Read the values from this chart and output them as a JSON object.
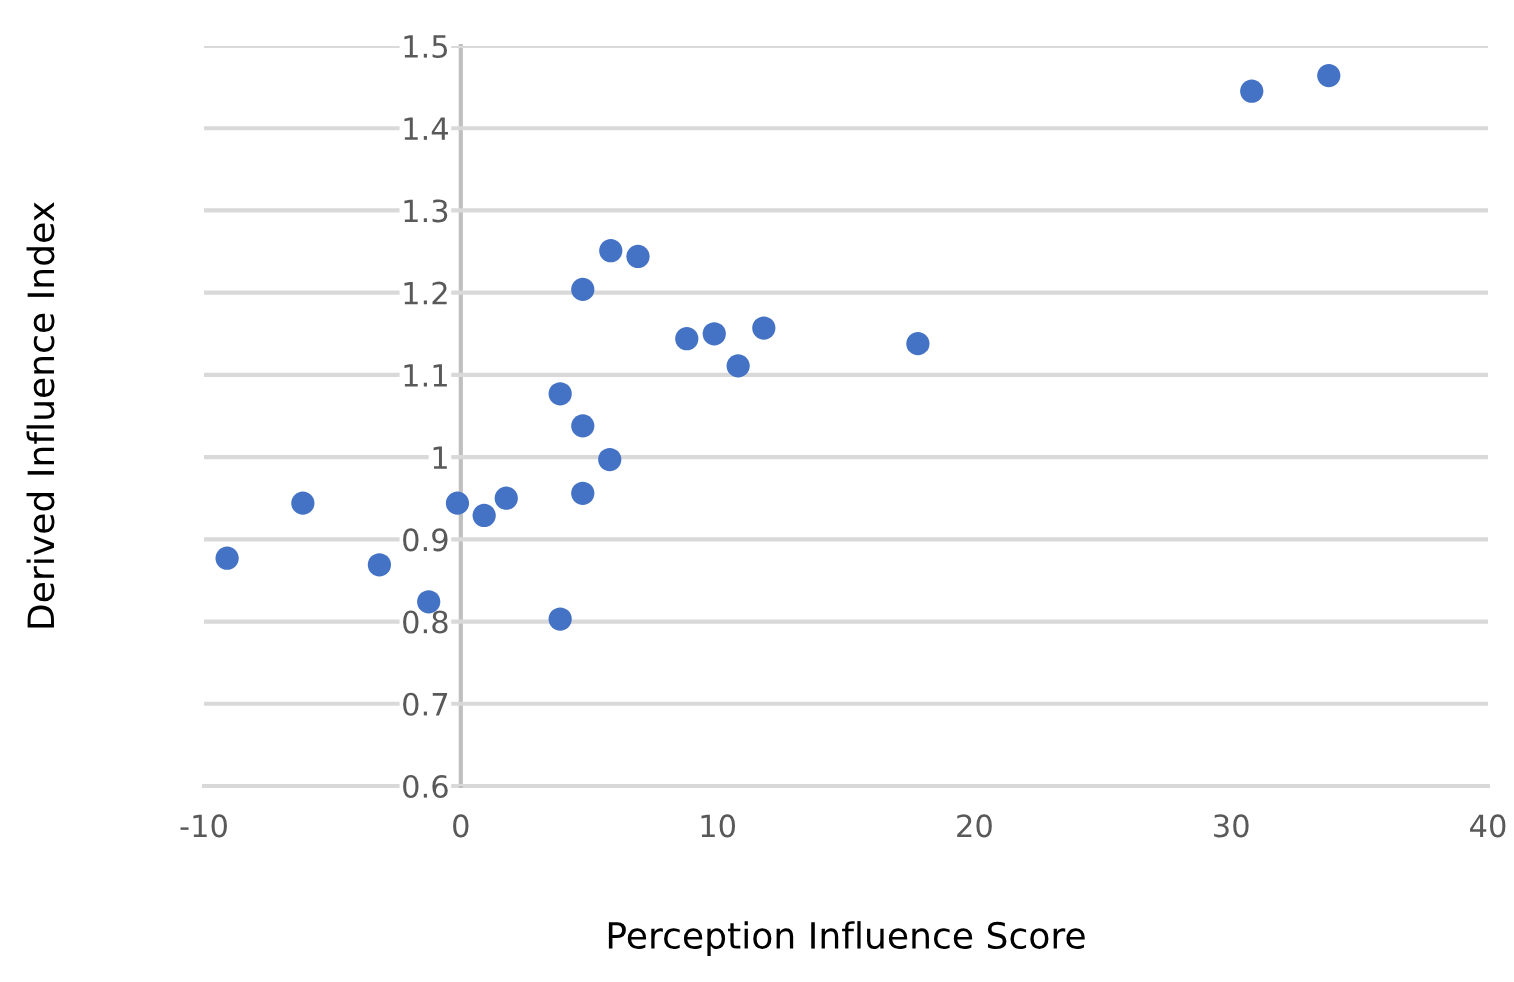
{
  "chart_data": {
    "type": "scatter",
    "xlabel": "Perception Influence Score",
    "ylabel": "Derived Influence Index",
    "x": [
      -9.1,
      -6.15,
      -3.17,
      -1.25,
      -0.13,
      0.91,
      1.77,
      3.87,
      3.87,
      4.75,
      4.75,
      5.8,
      8.8,
      9.87,
      10.8,
      11.8,
      5.84,
      6.9,
      4.75,
      17.8,
      30.8,
      33.8
    ],
    "values": [
      0.877,
      0.944,
      0.869,
      0.824,
      0.944,
      0.929,
      0.95,
      1.077,
      0.803,
      1.038,
      0.956,
      0.997,
      1.144,
      1.15,
      1.111,
      1.157,
      1.251,
      1.244,
      1.204,
      1.138,
      1.445,
      1.464
    ],
    "color": "#4472c4",
    "marker": "circle",
    "xlim": [
      -10,
      40
    ],
    "xticks": [
      -10,
      0,
      10,
      20,
      30,
      40
    ],
    "ylim": [
      0.6,
      1.5
    ],
    "yticks": [
      0.6,
      0.7,
      0.8,
      0.9,
      {
        "value": 1.0,
        "label": "1"
      },
      1.1,
      1.2,
      1.3,
      1.4,
      1.5
    ],
    "grid": "y"
  }
}
